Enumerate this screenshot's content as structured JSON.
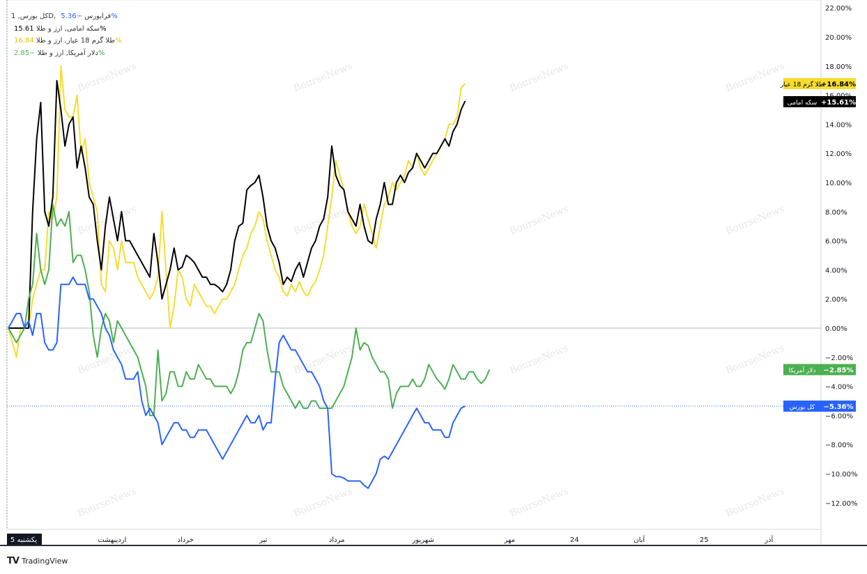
{
  "legend": [
    {
      "name": "کل بورس, 1D, فرابورس",
      "value": "−5.36%",
      "color": "#2962ff"
    },
    {
      "name": "سکه امامی, ارز و طلا",
      "value": "15.61%",
      "color": "#000000"
    },
    {
      "name": "طلا گرم 18 عیار, ارز و طلا",
      "value": "16.84%",
      "color": "#f7dc2e"
    },
    {
      "name": "دلار آمریکا, ارز و طلا",
      "value": "−2.85%",
      "color": "#4caf50"
    }
  ],
  "watermark": "BourseNews",
  "branding": {
    "logo": "TV",
    "name": "TradingView"
  },
  "chart_data": {
    "type": "line",
    "ylim": [
      -13.5,
      22
    ],
    "ylabel_format": "percent",
    "y_ticks": [
      "22.00%",
      "20.00%",
      "18.00%",
      "16.00%",
      "14.00%",
      "12.00%",
      "10.00%",
      "8.00%",
      "6.00%",
      "4.00%",
      "2.00%",
      "0.00%",
      "−2.00%",
      "−4.00%",
      "−6.00%",
      "−8.00%",
      "−10.00%",
      "−12.00%"
    ],
    "y_tick_values": [
      22,
      20,
      18,
      16,
      14,
      12,
      10,
      8,
      6,
      4,
      2,
      0,
      -2,
      -4,
      -6,
      -8,
      -10,
      -12
    ],
    "xlim": [
      0,
      200
    ],
    "x_ticks": [
      {
        "x": 0,
        "label": "یکشنبه 5",
        "highlight": true
      },
      {
        "x": 24,
        "label": "اردیبهشت"
      },
      {
        "x": 41,
        "label": "خرداد"
      },
      {
        "x": 59,
        "label": "تیر"
      },
      {
        "x": 76,
        "label": "مرداد"
      },
      {
        "x": 96,
        "label": "شهریور"
      },
      {
        "x": 116,
        "label": "مهر"
      },
      {
        "x": 131,
        "label": "24"
      },
      {
        "x": 146,
        "label": "آبان"
      },
      {
        "x": 161,
        "label": "25"
      },
      {
        "x": 176,
        "label": "آذر"
      }
    ],
    "zero_line": 0,
    "series": [
      {
        "name": "طلا گرم 18 عیار",
        "color": "#f7dc2e",
        "last_label": "+16.84%",
        "values": [
          0,
          -1,
          -2,
          0,
          0,
          0,
          2,
          3,
          4,
          4,
          8,
          7.5,
          9,
          18,
          15,
          14.5,
          14.5,
          16,
          12,
          13,
          10,
          9,
          8,
          3,
          2.5,
          6,
          5.5,
          4,
          6,
          4.5,
          4.5,
          4.5,
          3.5,
          3,
          2.5,
          2,
          2.5,
          3.5,
          8,
          4,
          0,
          1.5,
          4,
          3.5,
          2,
          1.5,
          3,
          2.5,
          2,
          1.5,
          1.5,
          1,
          1.5,
          2,
          2,
          2.5,
          3,
          4,
          5,
          5.5,
          6.5,
          7,
          8,
          7.5,
          6,
          5,
          4,
          3.5,
          2.5,
          2.2,
          3,
          2.5,
          3.2,
          2.5,
          2.2,
          2.8,
          3.2,
          4,
          5,
          7,
          9,
          11.5,
          10.5,
          9.5,
          8,
          7,
          6.5,
          7,
          8.5,
          7.5,
          6.5,
          5.5,
          7,
          8.5,
          9,
          10,
          9.5,
          10,
          10.5,
          11.5,
          11,
          12,
          11,
          10.5,
          11,
          11.5,
          12,
          12.5,
          13,
          14,
          14,
          14.5,
          16.5,
          16.8
        ]
      },
      {
        "name": "سکه امامی",
        "color": "#000000",
        "last_label": "+15.61%",
        "values": [
          0,
          0,
          0,
          0,
          0,
          0,
          8,
          13,
          15.5,
          8,
          7,
          9,
          17,
          15,
          12.5,
          14,
          14.5,
          11,
          12.5,
          11,
          9,
          8.5,
          6,
          4,
          7,
          9,
          7.5,
          6,
          8,
          6,
          6,
          5.5,
          5,
          4.5,
          4,
          3.5,
          6.5,
          4.5,
          2,
          3,
          4,
          5.5,
          4,
          4.2,
          5,
          4.8,
          4.5,
          4,
          3.5,
          3.5,
          3,
          3,
          2.8,
          2.5,
          3,
          4,
          6,
          7,
          7.2,
          9.5,
          9.8,
          10,
          10.5,
          9,
          7,
          6,
          5.5,
          4.5,
          3,
          3.5,
          3.2,
          4,
          4.5,
          3.5,
          4.5,
          5.5,
          6,
          7,
          7.5,
          9,
          12.5,
          10.5,
          9.8,
          9.5,
          8,
          7.5,
          7,
          8.5,
          7,
          6,
          5.8,
          7.5,
          8.5,
          10,
          8.5,
          8.5,
          10,
          10.5,
          10,
          10.7,
          11,
          12,
          11.5,
          11,
          11.5,
          12,
          12,
          12.5,
          13,
          12.5,
          13.5,
          14,
          15,
          15.6
        ]
      },
      {
        "name": "دلار آمریکا",
        "color": "#4caf50",
        "last_label": "−2.85%",
        "values": [
          0,
          -0.5,
          -1,
          -0.5,
          0,
          2,
          3,
          6.5,
          4,
          3,
          4,
          8.5,
          7,
          7.5,
          7,
          8,
          4.5,
          5,
          5,
          4,
          2.5,
          -0.5,
          -2,
          0,
          1,
          0.5,
          -1,
          0.5,
          0,
          -0.5,
          -1,
          -1.5,
          -2,
          -3,
          -4,
          -6,
          -6,
          -1.5,
          -5,
          -4.5,
          -3,
          -3,
          -4,
          -4,
          -3,
          -3.5,
          -3.5,
          -2.5,
          -3,
          -3.5,
          -3.5,
          -4,
          -4,
          -4,
          -4,
          -4.5,
          -4,
          -3,
          -1.5,
          -1,
          -1,
          0,
          1,
          0.5,
          -1.5,
          -3,
          -3,
          -3,
          -4,
          -4.5,
          -5,
          -5.5,
          -5,
          -5.5,
          -5.5,
          -5,
          -5,
          -5.5,
          -5.5,
          -5.5,
          -5.5,
          -5,
          -4.5,
          -4,
          -3,
          -2,
          0,
          -1.5,
          -1,
          -1.2,
          -2,
          -2.5,
          -3,
          -3,
          -3.5,
          -5.5,
          -4.5,
          -4,
          -4,
          -4,
          -3.5,
          -4,
          -4,
          -3.5,
          -2.5,
          -3,
          -3.5,
          -3.8,
          -4.2,
          -3.5,
          -2.5,
          -3,
          -3.5,
          -3.5,
          -3,
          -3,
          -3.5,
          -3.8,
          -3.5,
          -2.85
        ]
      },
      {
        "name": "کل بورس",
        "color": "#2962ff",
        "last_label": "−5.36%",
        "values": [
          0,
          0.5,
          1,
          1,
          0,
          0.5,
          -0.5,
          1,
          1,
          -1,
          -1.5,
          -1.5,
          -1,
          3,
          3,
          3,
          3.5,
          3,
          3,
          3,
          2,
          2,
          1.5,
          1,
          0,
          -0.5,
          -1.5,
          -2,
          -2.5,
          -3.5,
          -3.5,
          -3.5,
          -3,
          -5,
          -6,
          -5.5,
          -6,
          -6.5,
          -8,
          -7.5,
          -7,
          -6.5,
          -6.5,
          -7,
          -7,
          -7.5,
          -7.5,
          -7,
          -7,
          -7,
          -7.5,
          -8,
          -8.5,
          -9,
          -8.5,
          -8,
          -7.5,
          -7,
          -6.5,
          -6,
          -6.5,
          -6.5,
          -6,
          -7,
          -6.5,
          -6.5,
          -3.5,
          -1,
          -0.5,
          -1,
          -1.5,
          -1.5,
          -2,
          -2.5,
          -3,
          -3,
          -3.5,
          -4,
          -5,
          -5.5,
          -10,
          -10.2,
          -10.2,
          -10.3,
          -10.5,
          -10.5,
          -10.5,
          -10.5,
          -10.8,
          -11,
          -10.5,
          -10,
          -9,
          -8.8,
          -9,
          -8.5,
          -8,
          -7.5,
          -7,
          -6.5,
          -6,
          -5.5,
          -6,
          -6.5,
          -6.5,
          -7,
          -7,
          -7,
          -7.5,
          -7.5,
          -6.5,
          -6,
          -5.5,
          -5.36
        ]
      }
    ],
    "axis_labels": [
      {
        "series": "طلا گرم 18 عیار",
        "label": "طلا گرم 18 عیار",
        "value": "+16.84%",
        "bg": "#f7dc2e",
        "fg": "#000000"
      },
      {
        "series": "سکه امامی",
        "label": "سکه امامی",
        "value": "+15.61%",
        "bg": "#000000",
        "fg": "#ffffff"
      },
      {
        "series": "دلار آمریکا",
        "label": "دلار آمریکا",
        "value": "−2.85%",
        "bg": "#4caf50",
        "fg": "#ffffff"
      },
      {
        "series": "کل بورس",
        "label": "کل بورس",
        "value": "−5.36%",
        "bg": "#2962ff",
        "fg": "#ffffff"
      }
    ],
    "grid": false,
    "legend_position": "top-left"
  }
}
